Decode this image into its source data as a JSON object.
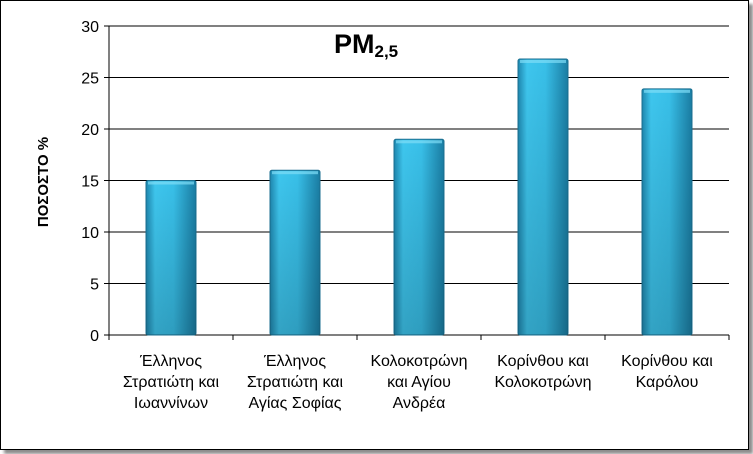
{
  "chart_data": {
    "type": "bar",
    "title": "PM",
    "title_subscript": "2,5",
    "ylabel": "ΠΟΣΟΣΤΟ %",
    "xlabel": "",
    "ylim": [
      0,
      30
    ],
    "yticks": [
      0,
      5,
      10,
      15,
      20,
      25,
      30
    ],
    "categories": [
      [
        "Έλληνος",
        "Στρατιώτη και",
        "Ιωαννίνων"
      ],
      [
        "Έλληνος",
        "Στρατιώτη και",
        "Αγίας Σοφίας"
      ],
      [
        "Κολοκοτρώνη",
        "και Αγίου",
        "Ανδρέα"
      ],
      [
        "Κορίνθου και",
        "Κολοκοτρώνη"
      ],
      [
        "Κορίνθου και",
        "Καρόλου"
      ]
    ],
    "values": [
      15,
      16,
      19,
      26.8,
      23.9
    ],
    "grid": true,
    "legend": "none",
    "colors": {
      "bar": "#35BCE6",
      "bar_dark": "#1B7FA6",
      "grid": "#000000"
    }
  }
}
